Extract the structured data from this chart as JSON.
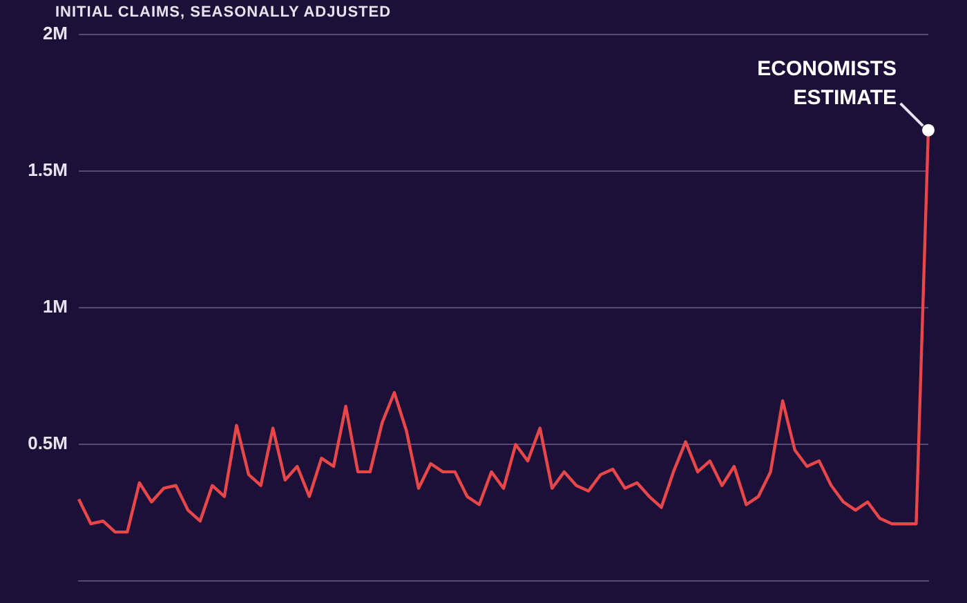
{
  "chart_data": {
    "type": "line",
    "subtitle": "INITIAL CLAIMS, SEASONALLY ADJUSTED",
    "categories": [
      null,
      null,
      null,
      null,
      null,
      null,
      null,
      null,
      null,
      null,
      null,
      null,
      null,
      null,
      null,
      null,
      null,
      null,
      null,
      null,
      null,
      null,
      null,
      null,
      null,
      null,
      null,
      null,
      null,
      null,
      null,
      null,
      null,
      null,
      null,
      null,
      null,
      null,
      null,
      null,
      null,
      null,
      null,
      null,
      null,
      null,
      null,
      null,
      null,
      null,
      null,
      null,
      null,
      null,
      null,
      null,
      null,
      null,
      null,
      null,
      null,
      null,
      null,
      null,
      null,
      null,
      null,
      null,
      null,
      null,
      null
    ],
    "series": [
      {
        "color": "#e8474a",
        "values": [
          300000,
          210000,
          220000,
          180000,
          180000,
          360000,
          290000,
          340000,
          350000,
          260000,
          220000,
          350000,
          310000,
          570000,
          390000,
          350000,
          560000,
          370000,
          420000,
          310000,
          450000,
          420000,
          640000,
          400000,
          400000,
          580000,
          690000,
          550000,
          340000,
          430000,
          400000,
          400000,
          310000,
          280000,
          400000,
          340000,
          500000,
          440000,
          560000,
          340000,
          400000,
          350000,
          330000,
          390000,
          410000,
          340000,
          360000,
          310000,
          270000,
          400000,
          510000,
          400000,
          440000,
          350000,
          420000,
          280000,
          310000,
          400000,
          660000,
          480000,
          420000,
          440000,
          350000,
          290000,
          260000,
          290000,
          230000,
          210000,
          210000,
          210000,
          1650000
        ]
      }
    ],
    "ylim": [
      0,
      2000000
    ],
    "yticks": [
      {
        "value": 500000,
        "label": "0.5M"
      },
      {
        "value": 1000000,
        "label": "1M"
      },
      {
        "value": 1500000,
        "label": "1.5M"
      },
      {
        "value": 2000000,
        "label": "2M"
      }
    ],
    "tick_labels": "y",
    "grid": "y",
    "line_style": "solid",
    "annotations": [
      "ECONOMISTS ESTIMATE"
    ]
  }
}
